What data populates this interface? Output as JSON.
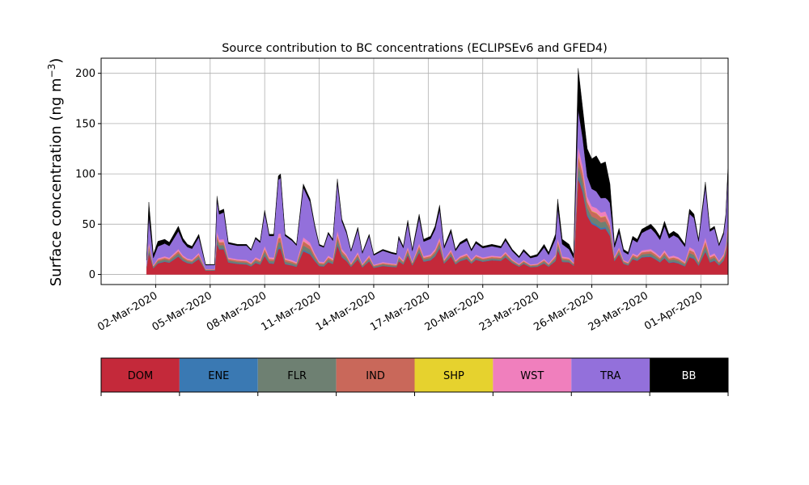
{
  "chart_data": {
    "type": "area",
    "stacked": true,
    "title": "Source contribution to BC concentrations (ECLIPSEv6 and GFED4)",
    "ylabel_main": "Surface concentration (ng m",
    "ylabel_sup": "−3",
    "ylabel_close": ")",
    "xlabel": "",
    "x_start": "2020-03-01T12:00",
    "x_end": "2020-04-01T00:00",
    "x_step_hours": 3,
    "xlim": [
      "2020-02-28T00:00",
      "2020-04-02T12:00"
    ],
    "ylim": [
      -10,
      215
    ],
    "yticks": [
      0,
      50,
      100,
      150,
      200
    ],
    "xticks": [
      {
        "date": "2020-03-02",
        "label": "02-Mar-2020"
      },
      {
        "date": "2020-03-05",
        "label": "05-Mar-2020"
      },
      {
        "date": "2020-03-08",
        "label": "08-Mar-2020"
      },
      {
        "date": "2020-03-11",
        "label": "11-Mar-2020"
      },
      {
        "date": "2020-03-14",
        "label": "14-Mar-2020"
      },
      {
        "date": "2020-03-17",
        "label": "17-Mar-2020"
      },
      {
        "date": "2020-03-20",
        "label": "20-Mar-2020"
      },
      {
        "date": "2020-03-23",
        "label": "23-Mar-2020"
      },
      {
        "date": "2020-03-26",
        "label": "26-Mar-2020"
      },
      {
        "date": "2020-03-29",
        "label": "29-Mar-2020"
      },
      {
        "date": "2020-04-01",
        "label": "01-Apr-2020"
      }
    ],
    "grid": true,
    "legend_position": "bottom",
    "series": [
      {
        "name": "DOM",
        "color": "#c4293a",
        "text_color": "#000000"
      },
      {
        "name": "ENE",
        "color": "#3a79b3",
        "text_color": "#000000"
      },
      {
        "name": "FLR",
        "color": "#6e8072",
        "text_color": "#000000"
      },
      {
        "name": "IND",
        "color": "#c9685a",
        "text_color": "#000000"
      },
      {
        "name": "SHP",
        "color": "#e6d22e",
        "text_color": "#000000"
      },
      {
        "name": "WST",
        "color": "#f07fbd",
        "text_color": "#000000"
      },
      {
        "name": "TRA",
        "color": "#9370db",
        "text_color": "#000000"
      },
      {
        "name": "BB",
        "color": "#000000",
        "text_color": "#ffffff"
      }
    ],
    "total_keyframes": [
      [
        "2020-03-01T12:00",
        15
      ],
      [
        "2020-03-01T15:00",
        72
      ],
      [
        "2020-03-01T21:00",
        20
      ],
      [
        "2020-03-02T03:00",
        33
      ],
      [
        "2020-03-02T12:00",
        35
      ],
      [
        "2020-03-02T18:00",
        32
      ],
      [
        "2020-03-03T00:00",
        40
      ],
      [
        "2020-03-03T06:00",
        48
      ],
      [
        "2020-03-03T12:00",
        36
      ],
      [
        "2020-03-03T18:00",
        30
      ],
      [
        "2020-03-04T00:00",
        28
      ],
      [
        "2020-03-04T09:00",
        40
      ],
      [
        "2020-03-04T18:00",
        10
      ],
      [
        "2020-03-05T06:00",
        10
      ],
      [
        "2020-03-05T09:00",
        78
      ],
      [
        "2020-03-05T12:00",
        63
      ],
      [
        "2020-03-05T18:00",
        65
      ],
      [
        "2020-03-06T00:00",
        32
      ],
      [
        "2020-03-06T12:00",
        30
      ],
      [
        "2020-03-07T00:00",
        30
      ],
      [
        "2020-03-07T06:00",
        25
      ],
      [
        "2020-03-07T12:00",
        37
      ],
      [
        "2020-03-07T18:00",
        33
      ],
      [
        "2020-03-08T00:00",
        64
      ],
      [
        "2020-03-08T06:00",
        40
      ],
      [
        "2020-03-08T12:00",
        40
      ],
      [
        "2020-03-08T18:00",
        98
      ],
      [
        "2020-03-08T21:00",
        100
      ],
      [
        "2020-03-09T03:00",
        40
      ],
      [
        "2020-03-09T12:00",
        35
      ],
      [
        "2020-03-09T18:00",
        30
      ],
      [
        "2020-03-10T03:00",
        90
      ],
      [
        "2020-03-10T12:00",
        75
      ],
      [
        "2020-03-10T18:00",
        50
      ],
      [
        "2020-03-11T00:00",
        30
      ],
      [
        "2020-03-11T06:00",
        28
      ],
      [
        "2020-03-11T12:00",
        42
      ],
      [
        "2020-03-11T18:00",
        35
      ],
      [
        "2020-03-12T00:00",
        95
      ],
      [
        "2020-03-12T06:00",
        55
      ],
      [
        "2020-03-12T12:00",
        43
      ],
      [
        "2020-03-12T18:00",
        24
      ],
      [
        "2020-03-13T03:00",
        47
      ],
      [
        "2020-03-13T09:00",
        22
      ],
      [
        "2020-03-13T18:00",
        40
      ],
      [
        "2020-03-14T00:00",
        20
      ],
      [
        "2020-03-14T12:00",
        25
      ],
      [
        "2020-03-15T00:00",
        22
      ],
      [
        "2020-03-15T06:00",
        21
      ],
      [
        "2020-03-15T09:00",
        38
      ],
      [
        "2020-03-15T15:00",
        28
      ],
      [
        "2020-03-15T21:00",
        54
      ],
      [
        "2020-03-16T03:00",
        25
      ],
      [
        "2020-03-16T12:00",
        60
      ],
      [
        "2020-03-16T18:00",
        35
      ],
      [
        "2020-03-17T03:00",
        38
      ],
      [
        "2020-03-17T09:00",
        48
      ],
      [
        "2020-03-17T15:00",
        69
      ],
      [
        "2020-03-17T21:00",
        28
      ],
      [
        "2020-03-18T06:00",
        45
      ],
      [
        "2020-03-18T12:00",
        25
      ],
      [
        "2020-03-18T18:00",
        32
      ],
      [
        "2020-03-19T03:00",
        36
      ],
      [
        "2020-03-19T09:00",
        25
      ],
      [
        "2020-03-19T15:00",
        33
      ],
      [
        "2020-03-20T00:00",
        28
      ],
      [
        "2020-03-20T12:00",
        30
      ],
      [
        "2020-03-21T00:00",
        28
      ],
      [
        "2020-03-21T06:00",
        36
      ],
      [
        "2020-03-21T15:00",
        25
      ],
      [
        "2020-03-22T00:00",
        18
      ],
      [
        "2020-03-22T06:00",
        25
      ],
      [
        "2020-03-22T15:00",
        18
      ],
      [
        "2020-03-23T00:00",
        20
      ],
      [
        "2020-03-23T09:00",
        30
      ],
      [
        "2020-03-23T15:00",
        22
      ],
      [
        "2020-03-24T00:00",
        40
      ],
      [
        "2020-03-24T03:00",
        75
      ],
      [
        "2020-03-24T09:00",
        35
      ],
      [
        "2020-03-24T18:00",
        30
      ],
      [
        "2020-03-25T00:00",
        20
      ],
      [
        "2020-03-25T06:00",
        205
      ],
      [
        "2020-03-25T12:00",
        165
      ],
      [
        "2020-03-25T18:00",
        125
      ],
      [
        "2020-03-26T00:00",
        115
      ],
      [
        "2020-03-26T06:00",
        118
      ],
      [
        "2020-03-26T12:00",
        110
      ],
      [
        "2020-03-26T18:00",
        112
      ],
      [
        "2020-03-27T00:00",
        90
      ],
      [
        "2020-03-27T06:00",
        30
      ],
      [
        "2020-03-27T12:00",
        46
      ],
      [
        "2020-03-27T18:00",
        25
      ],
      [
        "2020-03-28T00:00",
        22
      ],
      [
        "2020-03-28T06:00",
        38
      ],
      [
        "2020-03-28T12:00",
        35
      ],
      [
        "2020-03-28T18:00",
        45
      ],
      [
        "2020-03-29T06:00",
        50
      ],
      [
        "2020-03-29T12:00",
        45
      ],
      [
        "2020-03-29T18:00",
        38
      ],
      [
        "2020-03-30T00:00",
        53
      ],
      [
        "2020-03-30T06:00",
        40
      ],
      [
        "2020-03-30T12:00",
        43
      ],
      [
        "2020-03-30T18:00",
        40
      ],
      [
        "2020-03-31T03:00",
        30
      ],
      [
        "2020-03-31T09:00",
        65
      ],
      [
        "2020-03-31T15:00",
        60
      ],
      [
        "2020-03-31T21:00",
        35
      ],
      [
        "2020-04-01T06:00",
        92
      ],
      [
        "2020-04-01T12:00",
        45
      ],
      [
        "2020-04-01T18:00",
        48
      ],
      [
        "2020-04-02T00:00",
        30
      ],
      [
        "2020-04-02T06:00",
        42
      ],
      [
        "2020-04-02T09:00",
        60
      ],
      [
        "2020-04-02T12:00",
        110
      ],
      [
        "2020-04-02T13:30",
        118
      ]
    ],
    "bb_fraction_keyframes": [
      [
        "2020-03-01T12:00",
        0.05
      ],
      [
        "2020-03-01T15:00",
        0.2
      ],
      [
        "2020-03-02T12:00",
        0.12
      ],
      [
        "2020-03-05T12:00",
        0.05
      ],
      [
        "2020-03-08T18:00",
        0.04
      ],
      [
        "2020-03-12T00:00",
        0.04
      ],
      [
        "2020-03-17T12:00",
        0.07
      ],
      [
        "2020-03-21T00:00",
        0.06
      ],
      [
        "2020-03-24T03:00",
        0.12
      ],
      [
        "2020-03-25T06:00",
        0.2
      ],
      [
        "2020-03-25T12:00",
        0.18
      ],
      [
        "2020-03-26T06:00",
        0.3
      ],
      [
        "2020-03-26T18:00",
        0.32
      ],
      [
        "2020-03-27T06:00",
        0.1
      ],
      [
        "2020-03-29T00:00",
        0.08
      ],
      [
        "2020-03-30T06:00",
        0.1
      ],
      [
        "2020-04-01T06:00",
        0.05
      ],
      [
        "2020-04-02T12:00",
        0.05
      ]
    ],
    "tra_fraction_keyframes": [
      [
        "2020-03-01T12:00",
        0.35
      ],
      [
        "2020-03-05T12:00",
        0.4
      ],
      [
        "2020-03-08T18:00",
        0.55
      ],
      [
        "2020-03-10T03:00",
        0.55
      ],
      [
        "2020-03-12T00:00",
        0.5
      ],
      [
        "2020-03-17T12:00",
        0.4
      ],
      [
        "2020-03-21T00:00",
        0.3
      ],
      [
        "2020-03-24T03:00",
        0.4
      ],
      [
        "2020-03-25T06:00",
        0.18
      ],
      [
        "2020-03-26T18:00",
        0.12
      ],
      [
        "2020-03-27T06:00",
        0.3
      ],
      [
        "2020-03-29T00:00",
        0.4
      ],
      [
        "2020-04-01T06:00",
        0.55
      ],
      [
        "2020-04-02T12:00",
        0.45
      ]
    ],
    "minor_fractions": {
      "ENE": 0.015,
      "FLR": 0.05,
      "IND": 0.045,
      "SHP": 0.004,
      "WST": 0.04
    }
  }
}
